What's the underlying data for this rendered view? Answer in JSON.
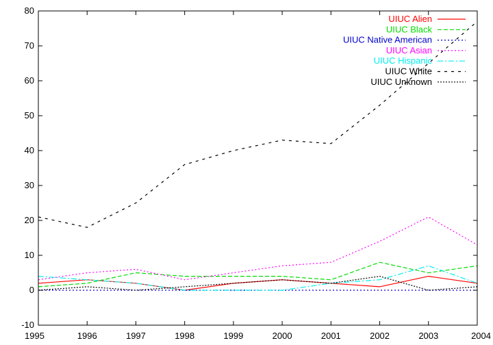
{
  "chart_data": {
    "type": "line",
    "title": "",
    "xlabel": "",
    "ylabel": "",
    "xlim": [
      1995,
      2004
    ],
    "ylim": [
      -10,
      80
    ],
    "x_ticks": [
      "1995",
      "1996",
      "1997",
      "1998",
      "1999",
      "2000",
      "2001",
      "2002",
      "2003",
      "2004"
    ],
    "y_ticks": [
      "-10",
      "0",
      "10",
      "20",
      "30",
      "40",
      "50",
      "60",
      "70",
      "80"
    ],
    "grid": false,
    "legend_position": "top-right",
    "x": [
      1995,
      1996,
      1997,
      1998,
      1999,
      2000,
      2001,
      2002,
      2003,
      2004
    ],
    "series": [
      {
        "name": "UIUC Alien",
        "color": "#ff0000",
        "dash": "solid",
        "values": [
          2,
          3,
          2,
          0,
          2,
          3,
          2,
          1,
          4,
          2
        ]
      },
      {
        "name": "UIUC Black",
        "color": "#00dd00",
        "dash": "dashed",
        "values": [
          1,
          2,
          5,
          4,
          4,
          4,
          3,
          8,
          5,
          7
        ]
      },
      {
        "name": "UIUC Native American",
        "color": "#0000cc",
        "dash": "dotted",
        "values": [
          0,
          0,
          0,
          0,
          0,
          0,
          0,
          0,
          0,
          0
        ]
      },
      {
        "name": "UIUC Asian",
        "color": "#ff00ff",
        "dash": "dotted",
        "values": [
          3,
          5,
          6,
          3,
          5,
          7,
          8,
          14,
          21,
          13
        ]
      },
      {
        "name": "UIUC Hispanic",
        "color": "#00eeee",
        "dash": "dashdot",
        "values": [
          4,
          3,
          2,
          0,
          0,
          0,
          2,
          3,
          7,
          2
        ]
      },
      {
        "name": "UIUC White",
        "color": "#000000",
        "dash": "sparse",
        "values": [
          21,
          18,
          25,
          36,
          40,
          43,
          42,
          53,
          65,
          77
        ]
      },
      {
        "name": "UIUC Unknown",
        "color": "#000000",
        "dash": "densedot",
        "values": [
          0,
          1,
          0,
          1,
          2,
          3,
          2,
          4,
          0,
          1
        ]
      }
    ]
  }
}
